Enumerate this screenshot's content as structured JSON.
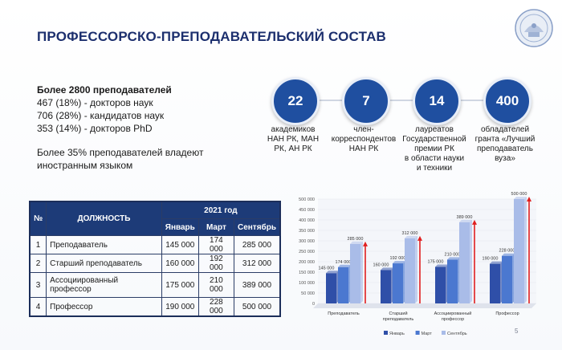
{
  "title": "ПРОФЕССОРСКО-ПРЕПОДАВАТЕЛЬСКИЙ СОСТАВ",
  "stats": {
    "headline": "Более 2800 преподавателей",
    "line1": "467 (18%) - докторов наук",
    "line2": "706 (28%) - кандидатов наук",
    "line3": "353 (14%) - докторов PhD",
    "note_line1": "Более 35% преподавателей владеют",
    "note_line2": "иностранным языком"
  },
  "circles": [
    {
      "value": "22",
      "caption_l1": "академиков",
      "caption_l2": "НАН РК, МАН",
      "caption_l3": "РК, АН РК",
      "caption_l4": ""
    },
    {
      "value": "7",
      "caption_l1": "член-",
      "caption_l2": "корреспондентов",
      "caption_l3": "НАН РК",
      "caption_l4": ""
    },
    {
      "value": "14",
      "caption_l1": "лауреатов",
      "caption_l2": "Государственной",
      "caption_l3": "премии РК",
      "caption_l4": "в области науки",
      "caption_l5": "и техники"
    },
    {
      "value": "400",
      "caption_l1": "обладателей",
      "caption_l2": "гранта «Лучший",
      "caption_l3": "преподаватель",
      "caption_l4": "вуза»"
    }
  ],
  "table": {
    "col_no": "№",
    "col_position": "ДОЛЖНОСТЬ",
    "year": "2021 год",
    "months": [
      "Январь",
      "Март",
      "Сентябрь"
    ],
    "rows": [
      {
        "no": "1",
        "name": "Преподаватель",
        "jan": "145 000",
        "mar": "174 000",
        "sep": "285 000"
      },
      {
        "no": "2",
        "name": "Старший преподаватель",
        "jan": "160 000",
        "mar": "192 000",
        "sep": "312 000"
      },
      {
        "no": "3",
        "name": "Ассоциированный профессор",
        "jan": "175 000",
        "mar": "210 000",
        "sep": "389 000"
      },
      {
        "no": "4",
        "name": "Профессор",
        "jan": "190 000",
        "mar": "228 000",
        "sep": "500 000"
      }
    ]
  },
  "chart_data": {
    "type": "bar",
    "categories": [
      "Преподаватель",
      "Старший преподаватель",
      "Ассоциированный профессор",
      "Профессор"
    ],
    "category_lines": [
      [
        "Преподаватель"
      ],
      [
        "Старший",
        "преподаватель"
      ],
      [
        "Ассоциированный",
        "профессор"
      ],
      [
        "Профессор"
      ]
    ],
    "series": [
      {
        "name": "Январь",
        "values": [
          145000,
          160000,
          175000,
          190000
        ],
        "color": "#2f4fa8"
      },
      {
        "name": "Март",
        "values": [
          174000,
          192000,
          210000,
          228000
        ],
        "color": "#4b78d0"
      },
      {
        "name": "Сентябрь",
        "values": [
          285000,
          312000,
          389000,
          500000
        ],
        "color": "#a9bce8"
      }
    ],
    "value_labels": [
      [
        "145 000",
        "174 000",
        "285 000"
      ],
      [
        "160 000",
        "192 000",
        "312 000"
      ],
      [
        "175 000",
        "210 000",
        "389 000"
      ],
      [
        "190 000",
        "228 000",
        "500 000"
      ]
    ],
    "y_ticks": [
      "0",
      "50 000",
      "100 000",
      "150 000",
      "200 000",
      "250 000",
      "300 000",
      "350 000",
      "400 000",
      "450 000",
      "500 000"
    ],
    "ylim": [
      0,
      500000
    ],
    "legend_position": "bottom",
    "arrow_color": "#e02020"
  },
  "page_number": "5"
}
